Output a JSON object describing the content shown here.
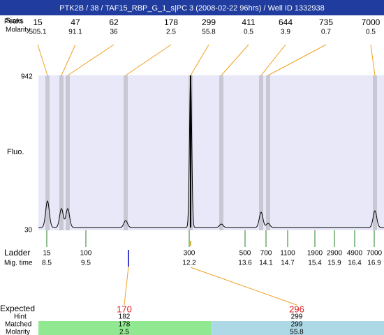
{
  "title": "PTK2B / 38 / TAF15_RBP_G_1_s|PC 3 (2008-02-22 96hrs) / Well ID 1332938",
  "peaks": {
    "peaks_label": "Peaks",
    "sizes_label": "Sizes",
    "molarity_label": "Molarity",
    "items": [
      {
        "size": "15",
        "molarity": "505.1"
      },
      {
        "size": "47",
        "molarity": "91.1"
      },
      {
        "size": "62",
        "molarity": "36"
      },
      {
        "size": "178",
        "molarity": "2.5"
      },
      {
        "size": "299",
        "molarity": "55.8"
      },
      {
        "size": "411",
        "molarity": "0.5"
      },
      {
        "size": "644",
        "molarity": "3.9"
      },
      {
        "size": "735",
        "molarity": "0.7"
      },
      {
        "size": "7000",
        "molarity": "0.5"
      }
    ]
  },
  "y_axis": {
    "label": "Fluo.",
    "max": "942",
    "min": "30"
  },
  "ladder": {
    "label": "Ladder",
    "mig_label": "Mig. time",
    "items": [
      {
        "size": "15",
        "time": "8.5"
      },
      {
        "size": "100",
        "time": "9.5"
      },
      {
        "size": "300",
        "time": "12.2"
      },
      {
        "size": "500",
        "time": "13.6"
      },
      {
        "size": "700",
        "time": "14.1"
      },
      {
        "size": "1100",
        "time": "14.7"
      },
      {
        "size": "1900",
        "time": "15.4"
      },
      {
        "size": "2900",
        "time": "15.9"
      },
      {
        "size": "4900",
        "time": "16.4"
      },
      {
        "size": "7000",
        "time": "16.9"
      }
    ]
  },
  "expected": {
    "label": "Expected",
    "hint_label": "Hint",
    "matched_label": "Matched",
    "molarity_label": "Molarity",
    "items": [
      {
        "expected": "170",
        "hint": "182",
        "matched": "178",
        "molarity": "2.5"
      },
      {
        "expected": "296",
        "hint": "299",
        "matched": "299",
        "molarity": "55.8"
      }
    ]
  }
}
